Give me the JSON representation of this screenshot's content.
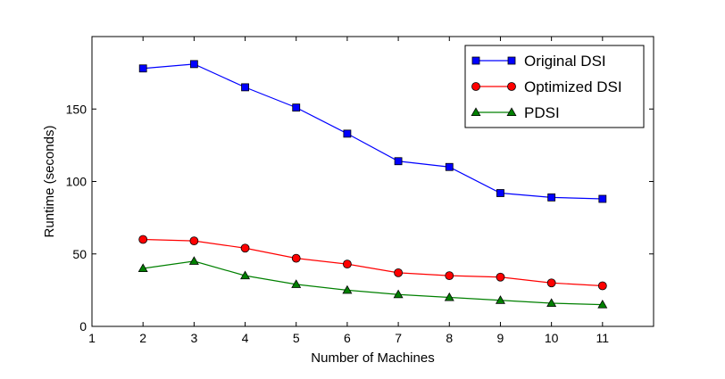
{
  "chart_data": {
    "type": "line",
    "title": "",
    "xlabel": "Number of Machines",
    "ylabel": "Runtime (seconds)",
    "xlim": [
      1,
      12
    ],
    "ylim": [
      0,
      200
    ],
    "xticks": [
      1,
      2,
      3,
      4,
      5,
      6,
      7,
      8,
      9,
      10,
      11
    ],
    "yticks": [
      0,
      50,
      100,
      150
    ],
    "grid": false,
    "legend_position": "top-right",
    "x": [
      2,
      3,
      4,
      5,
      6,
      7,
      8,
      9,
      10,
      11
    ],
    "series": [
      {
        "name": "Original DSI",
        "color": "#0000ff",
        "marker": "square",
        "values": [
          178,
          181,
          165,
          151,
          133,
          114,
          110,
          92,
          89,
          88
        ]
      },
      {
        "name": "Optimized DSI",
        "color": "#ff0000",
        "marker": "circle",
        "values": [
          60,
          59,
          54,
          47,
          43,
          37,
          35,
          34,
          30,
          28
        ]
      },
      {
        "name": "PDSI",
        "color": "#008000",
        "marker": "triangle",
        "values": [
          40,
          45,
          35,
          29,
          25,
          22,
          20,
          18,
          16,
          15
        ]
      }
    ]
  }
}
